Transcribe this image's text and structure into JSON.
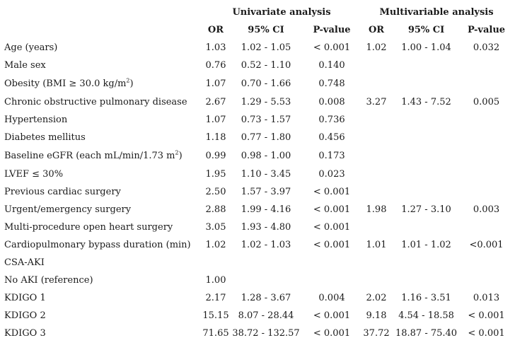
{
  "header": {
    "univariate": "Univariate analysis",
    "multivariable": "Multivariable analysis",
    "columns": [
      "OR",
      "95% CI",
      "P-value",
      "OR",
      "95% CI",
      "P-value"
    ]
  },
  "rows": [
    {
      "label": "Age (years)",
      "u_or": "1.03",
      "u_ci": "1.02 - 1.05",
      "u_p": "< 0.001",
      "m_or": "1.02",
      "m_ci": "1.00 - 1.04",
      "m_p": "0.032"
    },
    {
      "label": "Male sex",
      "u_or": "0.76",
      "u_ci": "0.52 - 1.10",
      "u_p": "0.140",
      "m_or": "",
      "m_ci": "",
      "m_p": ""
    },
    {
      "label": "Obesity (BMI ≥ 30.0 kg/m",
      "label_sup": "2",
      "label_after": ")",
      "u_or": "1.07",
      "u_ci": "0.70 - 1.66",
      "u_p": "0.748",
      "m_or": "",
      "m_ci": "",
      "m_p": ""
    },
    {
      "label": "Chronic obstructive pulmonary disease",
      "u_or": "2.67",
      "u_ci": "1.29 - 5.53",
      "u_p": "0.008",
      "m_or": "3.27",
      "m_ci": "1.43 - 7.52",
      "m_p": "0.005"
    },
    {
      "label": "Hypertension",
      "u_or": "1.07",
      "u_ci": "0.73 - 1.57",
      "u_p": "0.736",
      "m_or": "",
      "m_ci": "",
      "m_p": ""
    },
    {
      "label": "Diabetes mellitus",
      "u_or": "1.18",
      "u_ci": "0.77 - 1.80",
      "u_p": "0.456",
      "m_or": "",
      "m_ci": "",
      "m_p": ""
    },
    {
      "label": "Baseline eGFR (each mL/min/1.73 m",
      "label_sup": "2",
      "label_after": ")",
      "u_or": "0.99",
      "u_ci": "0.98 - 1.00",
      "u_p": "0.173",
      "m_or": "",
      "m_ci": "",
      "m_p": ""
    },
    {
      "label": "LVEF ≤ 30%",
      "u_or": "1.95",
      "u_ci": "1.10 - 3.45",
      "u_p": "0.023",
      "m_or": "",
      "m_ci": "",
      "m_p": ""
    },
    {
      "label": "Previous cardiac surgery",
      "u_or": "2.50",
      "u_ci": "1.57 - 3.97",
      "u_p": "< 0.001",
      "m_or": "",
      "m_ci": "",
      "m_p": ""
    },
    {
      "label": "Urgent/emergency surgery",
      "u_or": "2.88",
      "u_ci": "1.99 - 4.16",
      "u_p": "< 0.001",
      "m_or": "1.98",
      "m_ci": "1.27 - 3.10",
      "m_p": "0.003"
    },
    {
      "label": "Multi-procedure open heart surgery",
      "u_or": "3.05",
      "u_ci": "1.93 - 4.80",
      "u_p": "< 0.001",
      "m_or": "",
      "m_ci": "",
      "m_p": ""
    },
    {
      "label": "Cardiopulmonary bypass duration (min)",
      "u_or": "1.02",
      "u_ci": "1.02 - 1.03",
      "u_p": "< 0.001",
      "m_or": "1.01",
      "m_ci": "1.01 - 1.02",
      "m_p": "<0.001"
    },
    {
      "label": "CSA-AKI",
      "u_or": "",
      "u_ci": "",
      "u_p": "",
      "m_or": "",
      "m_ci": "",
      "m_p": ""
    },
    {
      "label": "No AKI (reference)",
      "u_or": "1.00",
      "u_ci": "",
      "u_p": "",
      "m_or": "",
      "m_ci": "",
      "m_p": ""
    },
    {
      "label": "KDIGO 1",
      "u_or": "2.17",
      "u_ci": "1.28 - 3.67",
      "u_p": "0.004",
      "m_or": "2.02",
      "m_ci": "1.16 - 3.51",
      "m_p": "0.013"
    },
    {
      "label": "KDIGO 2",
      "u_or": "15.15",
      "u_ci": "8.07 - 28.44",
      "u_p": "< 0.001",
      "m_or": "9.18",
      "m_ci": "4.54 - 18.58",
      "m_p": "< 0.001"
    },
    {
      "label": "KDIGO 3",
      "u_or": "71.65",
      "u_ci": "38.72 - 132.57",
      "u_p": "< 0.001",
      "m_or": "37.72",
      "m_ci": "18.87 - 75.40",
      "m_p": "< 0.001"
    }
  ]
}
